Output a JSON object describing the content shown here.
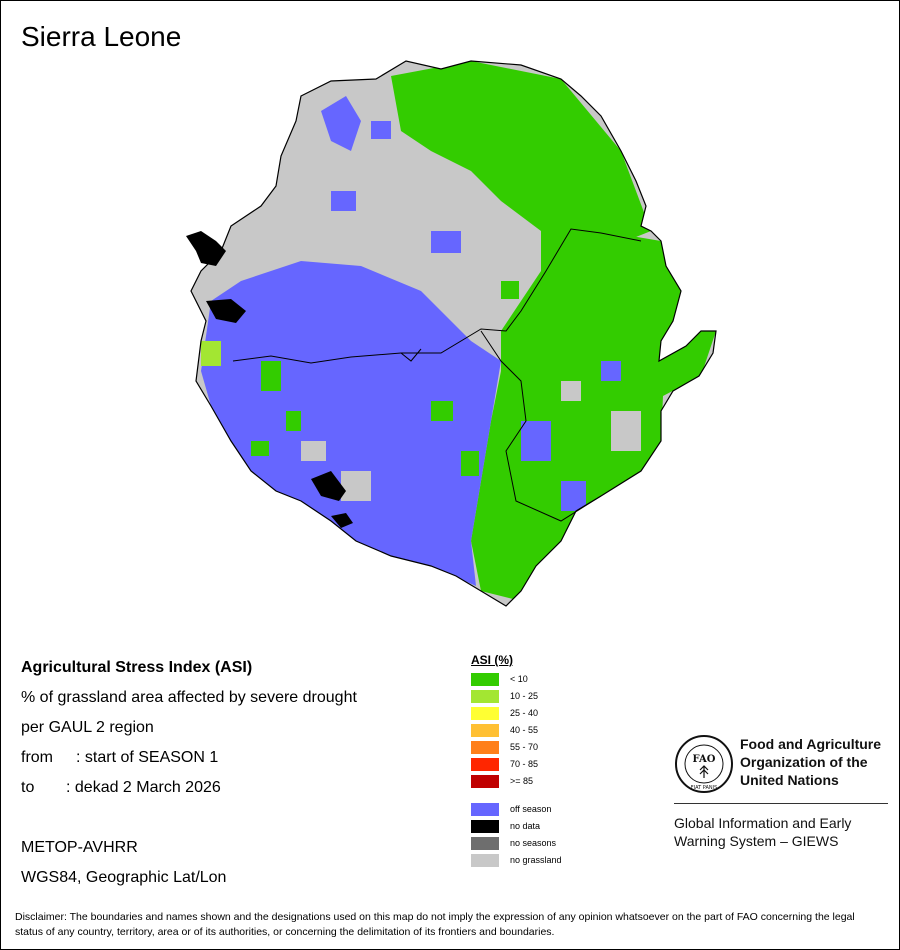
{
  "title": "Sierra Leone",
  "info": {
    "line1": "Agricultural Stress Index (ASI)",
    "line2": "% of grassland area affected by severe drought",
    "line3": "per GAUL 2 region",
    "from_label": "from",
    "from_value": ": start of SEASON 1",
    "to_label": "to",
    "to_value": ": dekad 2 March 2026",
    "sensor": "METOP-AVHRR",
    "projection": "WGS84, Geographic Lat/Lon"
  },
  "legend": {
    "title": "ASI (%)",
    "classes": [
      {
        "label": "< 10",
        "color": "#33cc00"
      },
      {
        "label": "10 - 25",
        "color": "#a3e632"
      },
      {
        "label": "25 - 40",
        "color": "#ffff33"
      },
      {
        "label": "40 - 55",
        "color": "#ffc033"
      },
      {
        "label": "55 - 70",
        "color": "#ff7f1a"
      },
      {
        "label": "70 - 85",
        "color": "#ff2600"
      },
      {
        "label": ">= 85",
        "color": "#c00000"
      }
    ],
    "special": [
      {
        "label": "off season",
        "color": "#6666ff"
      },
      {
        "label": "no data",
        "color": "#000000"
      },
      {
        "label": "no seasons",
        "color": "#6e6e6e"
      },
      {
        "label": "no grassland",
        "color": "#c8c8c8"
      }
    ]
  },
  "fao": {
    "line1": "Food and Agriculture",
    "line2": "Organization of the",
    "line3": "United Nations",
    "logo_letters": "FAO",
    "logo_motto": "FIAT PANIS"
  },
  "giews": {
    "line1": "Global Information and Early",
    "line2": "Warning System – GIEWS"
  },
  "disclaimer": "Disclaimer: The boundaries and names shown and the designations used on this map do not imply the expression of any opinion whatsoever on the part of FAO concerning the legal status of any country, territory, area or of its authorities, or concerning the delimitation of its frontiers and boundaries."
}
